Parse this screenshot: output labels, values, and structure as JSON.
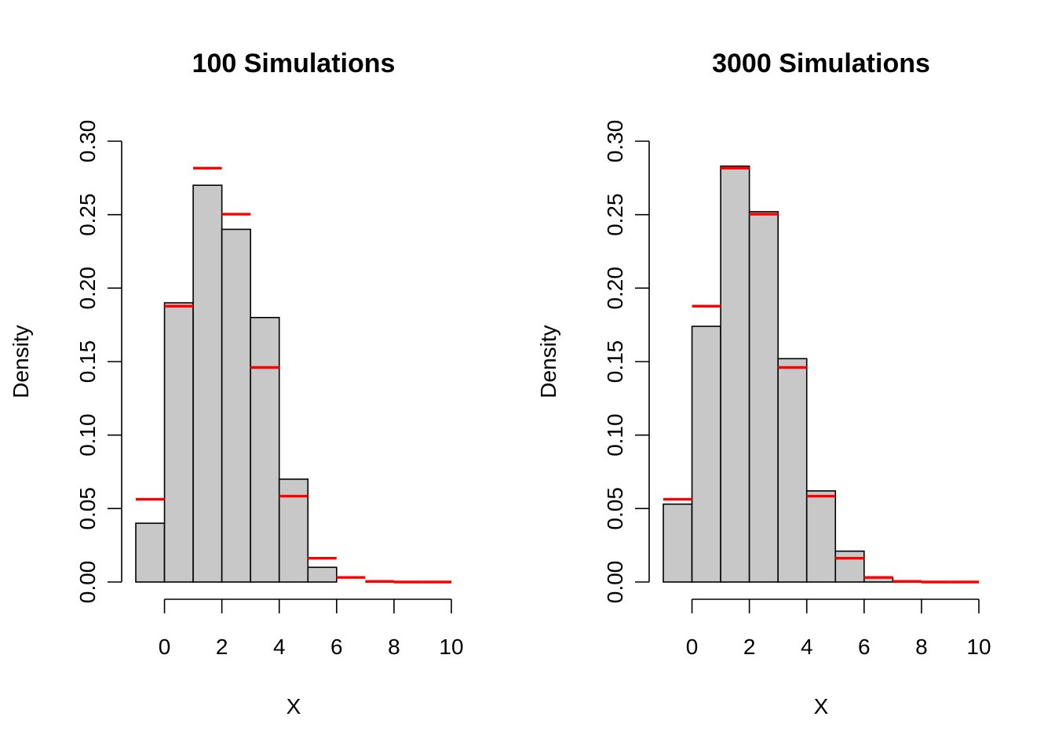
{
  "chart_data": [
    {
      "type": "bar",
      "title": "100 Simulations",
      "xlabel": "X",
      "ylabel": "Density",
      "xlim": [
        -1,
        10
      ],
      "ylim": [
        0,
        0.3
      ],
      "x_ticks": [
        0,
        2,
        4,
        6,
        8,
        10
      ],
      "y_ticks": [
        0.0,
        0.05,
        0.1,
        0.15,
        0.2,
        0.25,
        0.3
      ],
      "y_tick_labels": [
        "0.00",
        "0.05",
        "0.10",
        "0.15",
        "0.20",
        "0.25",
        "0.30"
      ],
      "bins": [
        [
          -1,
          0
        ],
        [
          0,
          1
        ],
        [
          1,
          2
        ],
        [
          2,
          3
        ],
        [
          3,
          4
        ],
        [
          4,
          5
        ],
        [
          5,
          6
        ],
        [
          6,
          7
        ],
        [
          7,
          8
        ],
        [
          8,
          9
        ],
        [
          9,
          10
        ]
      ],
      "values": [
        0.04,
        0.19,
        0.27,
        0.24,
        0.18,
        0.07,
        0.01,
        0.0,
        0.0,
        0.0,
        0.0
      ],
      "reference_series": {
        "color": "#ff0000",
        "values": [
          0.0563,
          0.1877,
          0.2816,
          0.2503,
          0.146,
          0.0584,
          0.0162,
          0.0031,
          0.0004,
          0.0,
          0.0
        ]
      }
    },
    {
      "type": "bar",
      "title": "3000 Simulations",
      "xlabel": "X",
      "ylabel": "Density",
      "xlim": [
        -1,
        10
      ],
      "ylim": [
        0,
        0.3
      ],
      "x_ticks": [
        0,
        2,
        4,
        6,
        8,
        10
      ],
      "y_ticks": [
        0.0,
        0.05,
        0.1,
        0.15,
        0.2,
        0.25,
        0.3
      ],
      "y_tick_labels": [
        "0.00",
        "0.05",
        "0.10",
        "0.15",
        "0.20",
        "0.25",
        "0.30"
      ],
      "bins": [
        [
          -1,
          0
        ],
        [
          0,
          1
        ],
        [
          1,
          2
        ],
        [
          2,
          3
        ],
        [
          3,
          4
        ],
        [
          4,
          5
        ],
        [
          5,
          6
        ],
        [
          6,
          7
        ],
        [
          7,
          8
        ],
        [
          8,
          9
        ],
        [
          9,
          10
        ]
      ],
      "values": [
        0.053,
        0.174,
        0.283,
        0.252,
        0.152,
        0.062,
        0.021,
        0.003,
        0.0005,
        0.0,
        0.0
      ],
      "reference_series": {
        "color": "#ff0000",
        "values": [
          0.0563,
          0.1877,
          0.2816,
          0.2503,
          0.146,
          0.0584,
          0.0162,
          0.0031,
          0.0004,
          0.0,
          0.0
        ]
      }
    }
  ]
}
